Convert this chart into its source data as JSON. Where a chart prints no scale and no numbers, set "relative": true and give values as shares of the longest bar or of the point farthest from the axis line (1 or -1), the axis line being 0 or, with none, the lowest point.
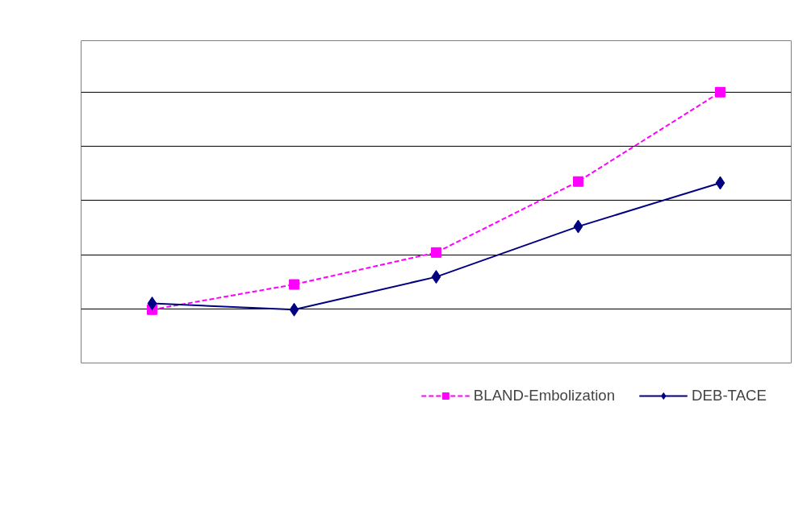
{
  "chart_data": {
    "type": "line",
    "relative": true,
    "categories": [
      null,
      null,
      null,
      null,
      null
    ],
    "series": [
      {
        "name": "DEB-TACE",
        "color": "#000080",
        "marker": "diamond",
        "line_style": "solid",
        "values": [
          0.22,
          0.197,
          0.318,
          0.504,
          0.665
        ]
      },
      {
        "name": "BLAND-Embolization",
        "color": "#ff00ff",
        "marker": "square",
        "line_style": "dashed",
        "values": [
          0.197,
          0.29,
          0.408,
          0.67,
          1.0
        ]
      }
    ],
    "grid": "y",
    "legend": "bottom"
  }
}
